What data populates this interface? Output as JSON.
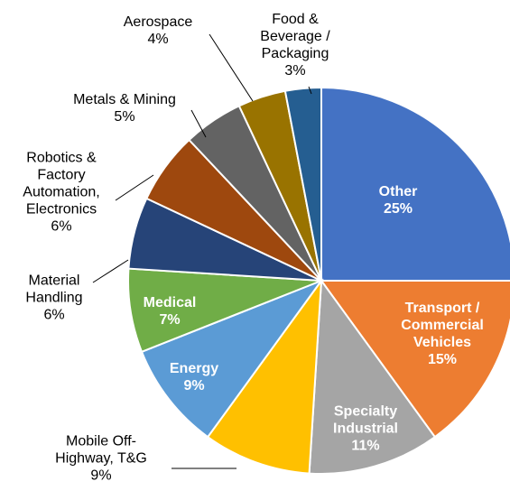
{
  "chart_data": {
    "type": "pie",
    "categories": [
      "Other",
      "Transport /\nCommercial\nVehicles",
      "Specialty\nIndustrial",
      "Mobile Off-\nHighway, T&G",
      "Energy",
      "Medical",
      "Material\nHandling",
      "Robotics &\nFactory\nAutomation,\nElectronics",
      "Metals & Mining",
      "Aerospace",
      "Food &\nBeverage /\nPackaging"
    ],
    "values": [
      25,
      15,
      11,
      9,
      9,
      7,
      6,
      6,
      5,
      4,
      3
    ],
    "value_labels": [
      "25%",
      "15%",
      "11%",
      "9%",
      "9%",
      "7%",
      "6%",
      "6%",
      "5%",
      "4%",
      "3%"
    ],
    "colors": [
      "#4472C4",
      "#ED7D31",
      "#A5A5A5",
      "#FFC000",
      "#5B9BD5",
      "#70AD47",
      "#264478",
      "#9E480E",
      "#636363",
      "#997300",
      "#255E91"
    ]
  }
}
